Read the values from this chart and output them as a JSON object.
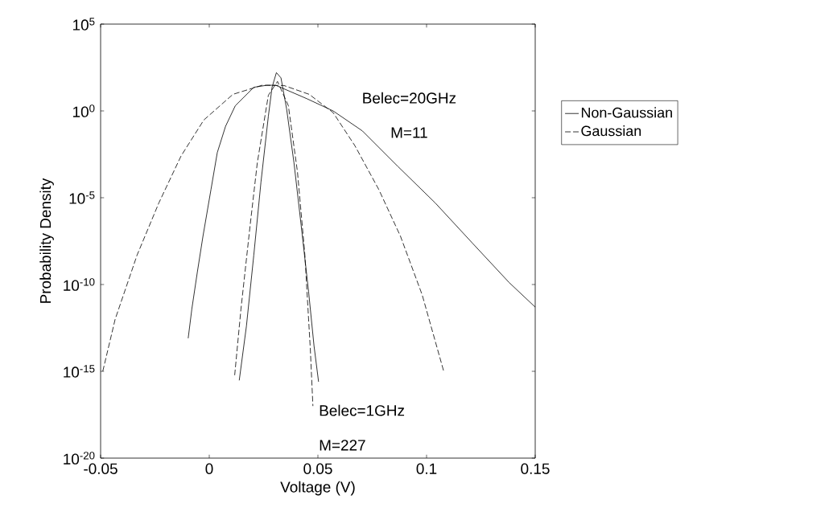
{
  "chart_data": {
    "type": "line",
    "xlabel": "Voltage (V)",
    "ylabel": "Probability Density",
    "log": "y",
    "grid": false,
    "legend": "right",
    "marker": "none",
    "xlim": [
      -0.05,
      0.15
    ],
    "xticks": [
      -0.05,
      0,
      0.05,
      0.1,
      0.15
    ],
    "ylim": [
      1e-20,
      100000.0
    ],
    "yticks": [
      {
        "value": 1e-20,
        "label": "10$^{-20}$"
      },
      {
        "value": 1e-15,
        "label": "10$^{-15}$"
      },
      {
        "value": 1e-10,
        "label": "10$^{-10}$"
      },
      {
        "value": 1e-05,
        "label": "10$^{-5}$"
      },
      {
        "value": 1,
        "label": "10$^{0}$"
      },
      {
        "value": 100000.0,
        "label": "10$^{5}$"
      }
    ],
    "series": [
      {
        "name": "Non-Gaussian",
        "color": "#000000",
        "line_style": "solid",
        "x": [
          -0.0097,
          -0.008,
          -0.0055,
          -0.0029,
          0.0008,
          0.0037,
          0.0075,
          0.012,
          0.0205,
          0.0265,
          0.0306,
          0.045,
          0.057,
          0.0705,
          0.087,
          0.104,
          0.121,
          0.138,
          0.15
        ],
        "values": [
          8e-14,
          4e-12,
          5e-10,
          6e-08,
          3e-05,
          0.004,
          0.13,
          2,
          23,
          30,
          30,
          5,
          1,
          0.07,
          0.0006,
          5e-06,
          2.5e-08,
          1.3e-10,
          5e-12
        ]
      },
      {
        "name": "Gaussian",
        "color": "#000000",
        "line_style": "dashed",
        "x": [
          -0.049,
          -0.0433,
          -0.0332,
          -0.0232,
          -0.013,
          -0.0025,
          0.0109,
          0.0243,
          0.0344,
          0.046,
          0.057,
          0.067,
          0.078,
          0.088,
          0.098,
          0.108
        ],
        "values": [
          1e-15,
          1e-12,
          5e-09,
          5e-06,
          0.0025,
          0.3,
          9,
          30,
          29,
          9,
          0.8,
          0.01,
          3e-05,
          6e-08,
          2.5e-11,
          9e-16
        ]
      },
      {
        "color": "#000000",
        "line_style": "solid",
        "x": [
          0.0138,
          0.0171,
          0.0205,
          0.0238,
          0.0272,
          0.0289,
          0.0309,
          0.033,
          0.0356,
          0.039,
          0.0423,
          0.0457,
          0.0482,
          0.0503
        ],
        "values": [
          3e-16,
          4e-13,
          5e-09,
          8e-05,
          0.5,
          23,
          160,
          80,
          1.3,
          0.001,
          2.5e-07,
          4e-11,
          3e-14,
          2.5e-16
        ]
      },
      {
        "color": "#000000",
        "line_style": "dashed",
        "x": [
          0.0117,
          0.0146,
          0.0188,
          0.0221,
          0.0272,
          0.0314,
          0.0364,
          0.0406,
          0.044,
          0.0465,
          0.0477
        ],
        "values": [
          6e-16,
          4e-12,
          2.5e-07,
          0.001,
          8,
          50,
          2,
          0.0003,
          5e-09,
          2e-14,
          1e-17
        ]
      }
    ],
    "annotations": [
      "Belec=20GHz",
      "M=11",
      "Belec=1GHz",
      "M=227"
    ]
  }
}
